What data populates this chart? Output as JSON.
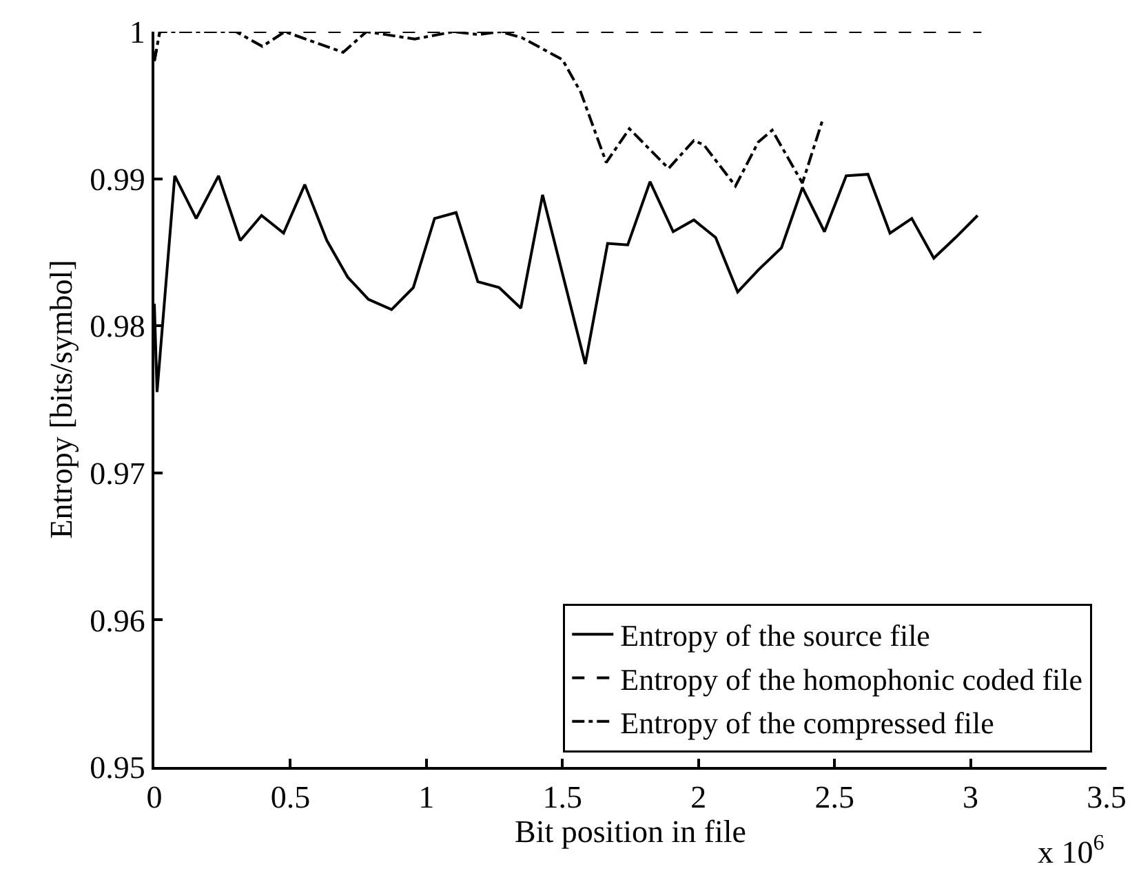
{
  "chart_data": {
    "type": "line",
    "xlabel": "Bit position in file",
    "ylabel": "Entropy [bits/symbol]",
    "xlim": [
      0,
      3.5
    ],
    "xticks": [
      0,
      0.5,
      1,
      1.5,
      2,
      2.5,
      3,
      3.5
    ],
    "ylim": [
      0.95,
      1
    ],
    "yticks": [
      0.95,
      0.96,
      0.97,
      0.98,
      0.99,
      {
        "value": 1,
        "label": "1"
      }
    ],
    "annotations": [
      "x 10$^{6}$"
    ],
    "grid": false,
    "legend": "bottom right",
    "series": [
      {
        "name": "Entropy of the source file",
        "color": "#000000",
        "line_style": "solid",
        "x": [
          0,
          0.01,
          0.075,
          0.154,
          0.236,
          0.316,
          0.394,
          0.475,
          0.553,
          0.634,
          0.711,
          0.787,
          0.872,
          0.952,
          1.03,
          1.109,
          1.189,
          1.267,
          1.347,
          1.427,
          1.584,
          1.666,
          1.74,
          1.822,
          1.907,
          1.983,
          2.063,
          2.144,
          2.22,
          2.305,
          2.382,
          2.463,
          2.543,
          2.623,
          2.704,
          2.784,
          2.865,
          2.945,
          3.026
        ],
        "values": [
          0.9815,
          0.9755,
          0.9902,
          0.9873,
          0.9902,
          0.9858,
          0.9875,
          0.9863,
          0.9896,
          0.9858,
          0.9833,
          0.9818,
          0.9811,
          0.9826,
          0.9873,
          0.9877,
          0.983,
          0.9826,
          0.9812,
          0.9889,
          0.9774,
          0.9856,
          0.9855,
          0.9898,
          0.9864,
          0.9872,
          0.986,
          0.9823,
          0.9838,
          0.9853,
          0.9894,
          0.9864,
          0.9902,
          0.9903,
          0.9863,
          0.9873,
          0.9846,
          0.986,
          0.9875
        ]
      },
      {
        "name": "Entropy of the homophonic coded file",
        "color": "#000000",
        "line_style": "dashed",
        "x": [
          0,
          0.02,
          3.04
        ],
        "values": [
          0.998,
          1,
          1
        ]
      },
      {
        "name": "Entropy of the compressed file",
        "color": "#000000",
        "line_style": "dashdot",
        "x": [
          0,
          0.02,
          0.3,
          0.397,
          0.48,
          0.694,
          0.78,
          0.957,
          1.1,
          1.19,
          1.27,
          1.35,
          1.5,
          1.567,
          1.661,
          1.746,
          1.89,
          1.983,
          2.02,
          2.136,
          2.22,
          2.271,
          2.382,
          2.458
        ],
        "values": [
          0.998,
          1,
          1,
          0.999,
          1,
          0.9986,
          1,
          0.9995,
          1,
          0.9998,
          1,
          0.9996,
          0.9981,
          0.9959,
          0.9911,
          0.9934,
          0.9907,
          0.9926,
          0.9923,
          0.9895,
          0.9925,
          0.9933,
          0.9897,
          0.9941
        ]
      }
    ]
  }
}
